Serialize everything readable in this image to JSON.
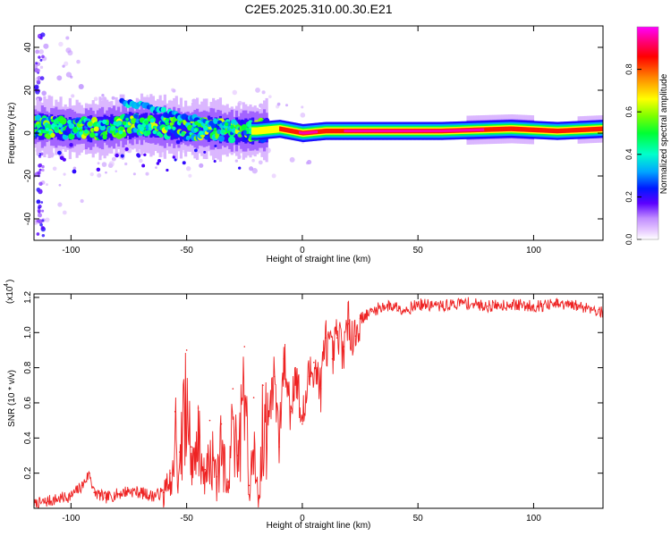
{
  "figure_title": "C2E5.2025.310.00.30.E21",
  "chart_data": [
    {
      "type": "heatmap",
      "title": "C2E5.2025.310.00.30.E21",
      "xlabel": "Height of straight line (km)",
      "ylabel": "Frequency (Hz)",
      "xlim": [
        -116,
        130
      ],
      "ylim": [
        -50,
        50
      ],
      "x_ticks": [
        -100,
        -50,
        0,
        50,
        100
      ],
      "x_tick_labels": [
        "-100",
        "-50",
        "0",
        "50",
        "100"
      ],
      "y_ticks": [
        -40,
        -20,
        0,
        20,
        40
      ],
      "y_tick_labels": [
        "-40",
        "-20",
        "0",
        "20",
        "40"
      ],
      "colorbar": {
        "label": "Normalized spectral amplitude",
        "range": [
          0,
          1
        ],
        "ticks": [
          0.0,
          0.2,
          0.4,
          0.6,
          0.8
        ],
        "tick_labels": [
          "0.0",
          "0.2",
          "0.4",
          "0.6",
          "0.8"
        ],
        "colormap": [
          "#ffffff",
          "#d9b3ff",
          "#9b30ff",
          "#2a00ff",
          "#0066ff",
          "#00d8ff",
          "#00ff66",
          "#88ff00",
          "#ffff00",
          "#ff9900",
          "#ff0000",
          "#ff0088",
          "#ff00ff"
        ]
      },
      "ridge": {
        "x": [
          -116,
          -110,
          -100,
          -90,
          -80,
          -70,
          -60,
          -50,
          -40,
          -30,
          -20,
          -10,
          0,
          10,
          30,
          60,
          90,
          110,
          130
        ],
        "frequency": [
          3,
          3,
          2,
          2,
          3,
          4,
          3,
          2,
          2,
          1,
          1,
          2,
          0,
          1,
          1,
          1,
          2,
          1,
          2
        ],
        "amplitude": [
          0.55,
          0.55,
          0.6,
          0.6,
          0.6,
          0.65,
          0.6,
          0.6,
          0.55,
          0.55,
          0.7,
          0.8,
          0.95,
          0.9,
          0.95,
          0.95,
          0.9,
          0.9,
          0.85
        ]
      },
      "secondary_branch": {
        "x": [
          -78,
          -70,
          -60,
          -50,
          -40,
          -30
        ],
        "frequency": [
          14,
          13,
          10,
          7,
          5,
          3
        ],
        "amplitude": [
          0.5,
          0.5,
          0.45,
          0.4,
          0.35,
          0.3
        ]
      }
    },
    {
      "type": "line",
      "xlabel": "Height of straight line (km)",
      "ylabel": "SNR (10 * v/v)",
      "y_multiplier": "(x10",
      "y_multiplier_exp": "4",
      "xlim": [
        -116,
        130
      ],
      "ylim": [
        0,
        1.22
      ],
      "x_ticks": [
        -100,
        -50,
        0,
        50,
        100
      ],
      "x_tick_labels": [
        "-100",
        "-50",
        "0",
        "50",
        "100"
      ],
      "y_ticks": [
        0.2,
        0.4,
        0.6,
        0.8,
        1.0,
        1.2
      ],
      "y_tick_labels": [
        "0.2",
        "0.4",
        "0.6",
        "0.8",
        "1.0",
        "1.2"
      ],
      "series": [
        {
          "name": "SNR",
          "color": "#ee2222",
          "x": [
            -116,
            -110,
            -100,
            -95,
            -92,
            -90,
            -85,
            -80,
            -75,
            -70,
            -65,
            -60,
            -57,
            -55,
            -53,
            -50,
            -48,
            -45,
            -42,
            -40,
            -37,
            -35,
            -32,
            -30,
            -28,
            -25,
            -23,
            -21,
            -19,
            -17,
            -15,
            -12,
            -10,
            -8,
            -5,
            -3,
            0,
            3,
            5,
            8,
            10,
            13,
            15,
            18,
            20,
            23,
            25,
            28,
            30,
            35,
            40,
            45,
            50,
            60,
            70,
            80,
            90,
            100,
            110,
            120,
            125,
            130
          ],
          "y": [
            0.02,
            0.04,
            0.07,
            0.13,
            0.2,
            0.09,
            0.06,
            0.08,
            0.1,
            0.09,
            0.07,
            0.09,
            0.2,
            0.55,
            0.32,
            0.9,
            0.35,
            0.57,
            0.22,
            0.5,
            0.18,
            0.48,
            0.15,
            0.68,
            0.3,
            0.92,
            0.13,
            0.63,
            0.05,
            0.7,
            0.52,
            0.75,
            0.35,
            0.85,
            0.55,
            0.8,
            0.48,
            0.75,
            0.83,
            0.68,
            0.97,
            0.85,
            0.97,
            0.92,
            1.05,
            0.98,
            1.08,
            1.1,
            1.12,
            1.15,
            1.15,
            1.13,
            1.16,
            1.15,
            1.17,
            1.15,
            1.16,
            1.15,
            1.16,
            1.15,
            1.14,
            1.11
          ]
        }
      ]
    }
  ]
}
